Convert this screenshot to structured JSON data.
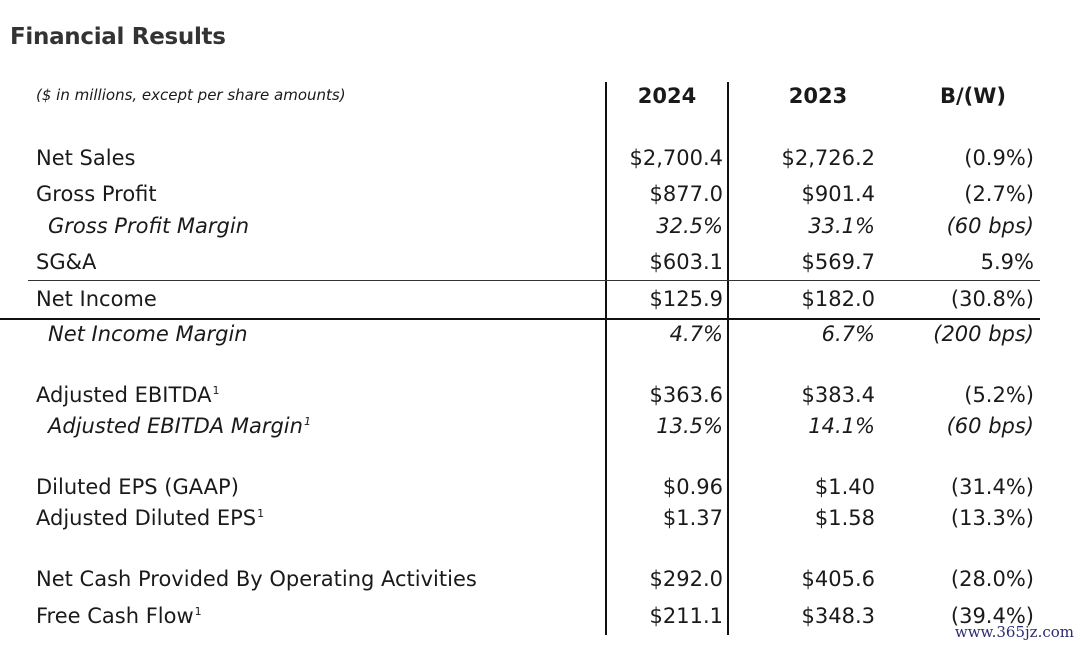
{
  "title": "Financial Results",
  "note": "($ in millions, except per share amounts)",
  "headers": [
    "2024",
    "2023",
    "B/(W)"
  ],
  "rows": [
    {
      "label": "Net Sales",
      "v2024": "$2,700.4",
      "v2023": "$2,726.2",
      "bw": "(0.9%)"
    },
    {
      "label": "Gross Profit",
      "v2024": "$877.0",
      "v2023": "$901.4",
      "bw": "(2.7%)"
    },
    {
      "label": "Gross Profit Margin",
      "v2024": "32.5%",
      "v2023": "33.1%",
      "bw": "(60 bps)"
    },
    {
      "label": "SG&A",
      "v2024": "$603.1",
      "v2023": "$569.7",
      "bw": "5.9%"
    },
    {
      "label": "Net Income",
      "v2024": "$125.9",
      "v2023": "$182.0",
      "bw": "(30.8%)"
    },
    {
      "label": "Net Income Margin",
      "v2024": "4.7%",
      "v2023": "6.7%",
      "bw": "(200 bps)"
    },
    {
      "label": "Adjusted EBITDA",
      "footnote": "1",
      "v2024": "$363.6",
      "v2023": "$383.4",
      "bw": "(5.2%)"
    },
    {
      "label": "Adjusted EBITDA Margin",
      "footnote": "1",
      "v2024": "13.5%",
      "v2023": "14.1%",
      "bw": "(60 bps)"
    },
    {
      "label": "Diluted EPS (GAAP)",
      "v2024": "$0.96",
      "v2023": "$1.40",
      "bw": "(31.4%)"
    },
    {
      "label": "Adjusted Diluted EPS",
      "footnote": "1",
      "v2024": "$1.37",
      "v2023": "$1.58",
      "bw": "(13.3%)"
    },
    {
      "label": "Net Cash Provided By Operating Activities",
      "v2024": "$292.0",
      "v2023": "$405.6",
      "bw": "(28.0%)"
    },
    {
      "label": "Free Cash Flow",
      "footnote": "1",
      "v2024": "$211.1",
      "v2023": "$348.3",
      "bw": "(39.4%)"
    }
  ],
  "watermark": "www.365jz.com"
}
